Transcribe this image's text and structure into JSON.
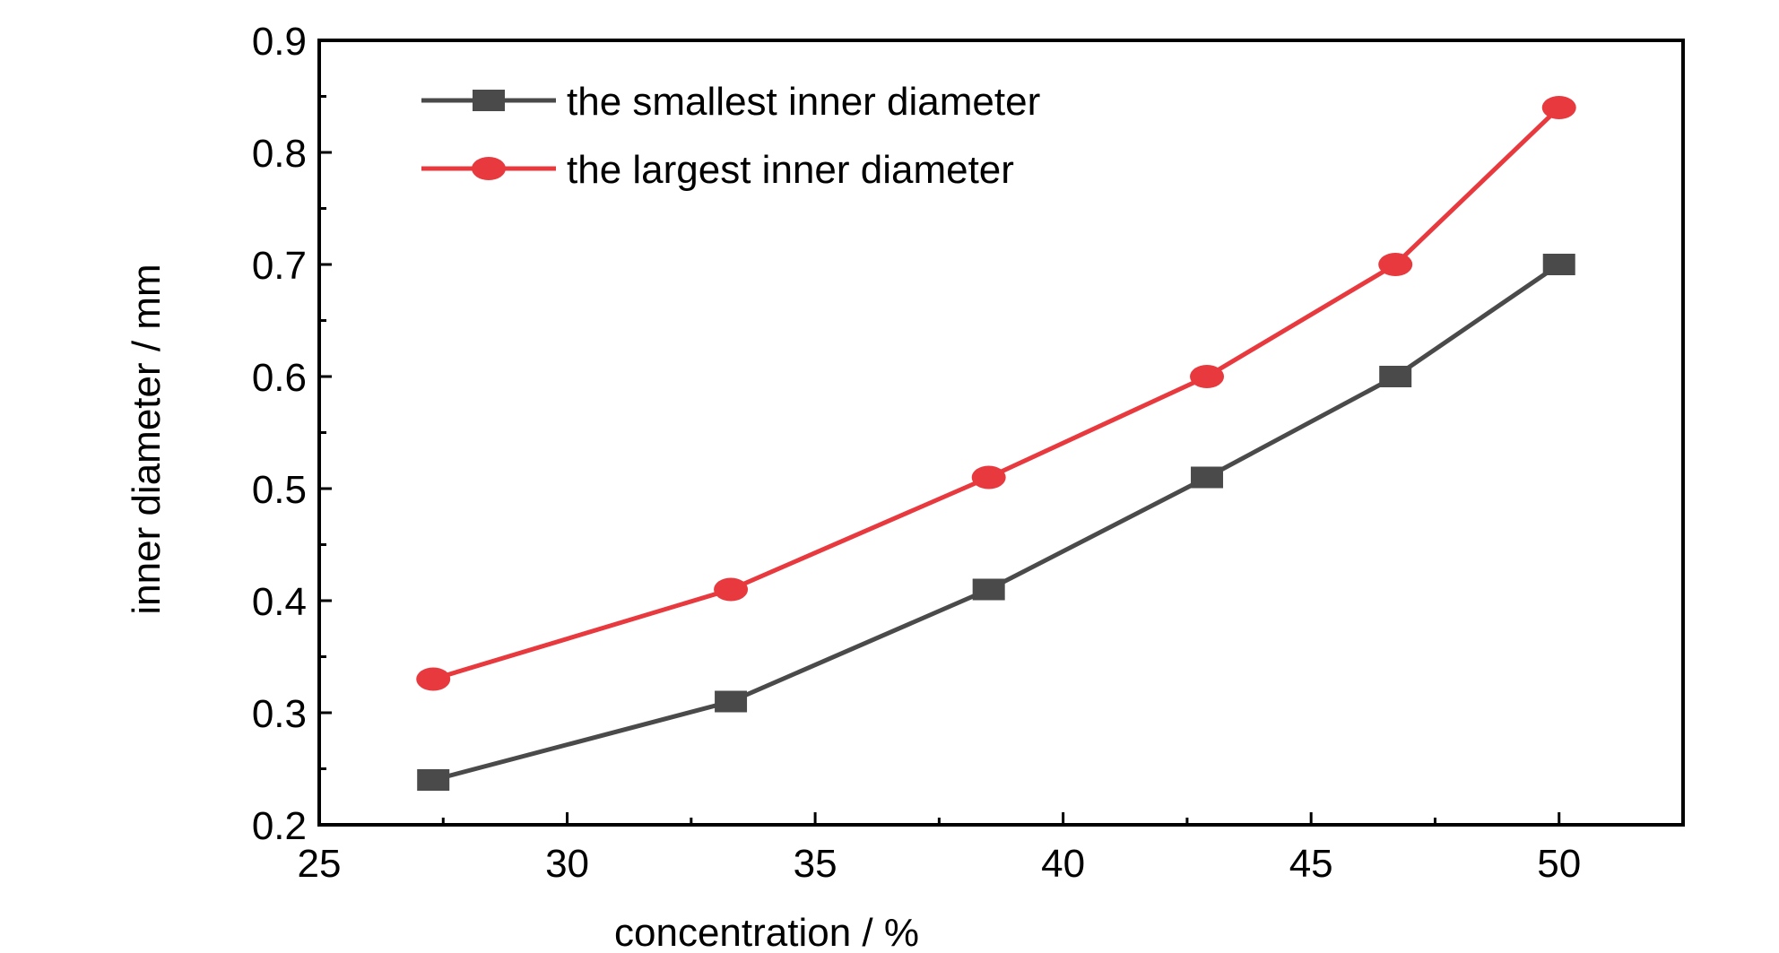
{
  "chart_data": {
    "type": "line",
    "xlabel": "concentration / %",
    "ylabel": "inner diameter / mm",
    "xlim": [
      25,
      52.5
    ],
    "ylim": [
      0.2,
      0.9
    ],
    "xticks": [
      "25",
      "30",
      "35",
      "40",
      "45",
      "50"
    ],
    "yticks": [
      "0.2",
      "0.3",
      "0.4",
      "0.5",
      "0.6",
      "0.7",
      "0.8",
      "0.9"
    ],
    "grid": false,
    "legend_position": "top-left",
    "series": [
      {
        "name": "the smallest inner diameter",
        "color": "#4a4a4a",
        "marker": "square",
        "x": [
          27.3,
          33.3,
          38.5,
          42.9,
          46.7,
          50.0
        ],
        "y": [
          0.24,
          0.31,
          0.41,
          0.51,
          0.6,
          0.7
        ]
      },
      {
        "name": "the largest inner diameter",
        "color": "#e8393e",
        "marker": "circle",
        "x": [
          27.3,
          33.3,
          38.5,
          42.9,
          46.7,
          50.0
        ],
        "y": [
          0.33,
          0.41,
          0.51,
          0.6,
          0.7,
          0.84
        ]
      }
    ]
  }
}
